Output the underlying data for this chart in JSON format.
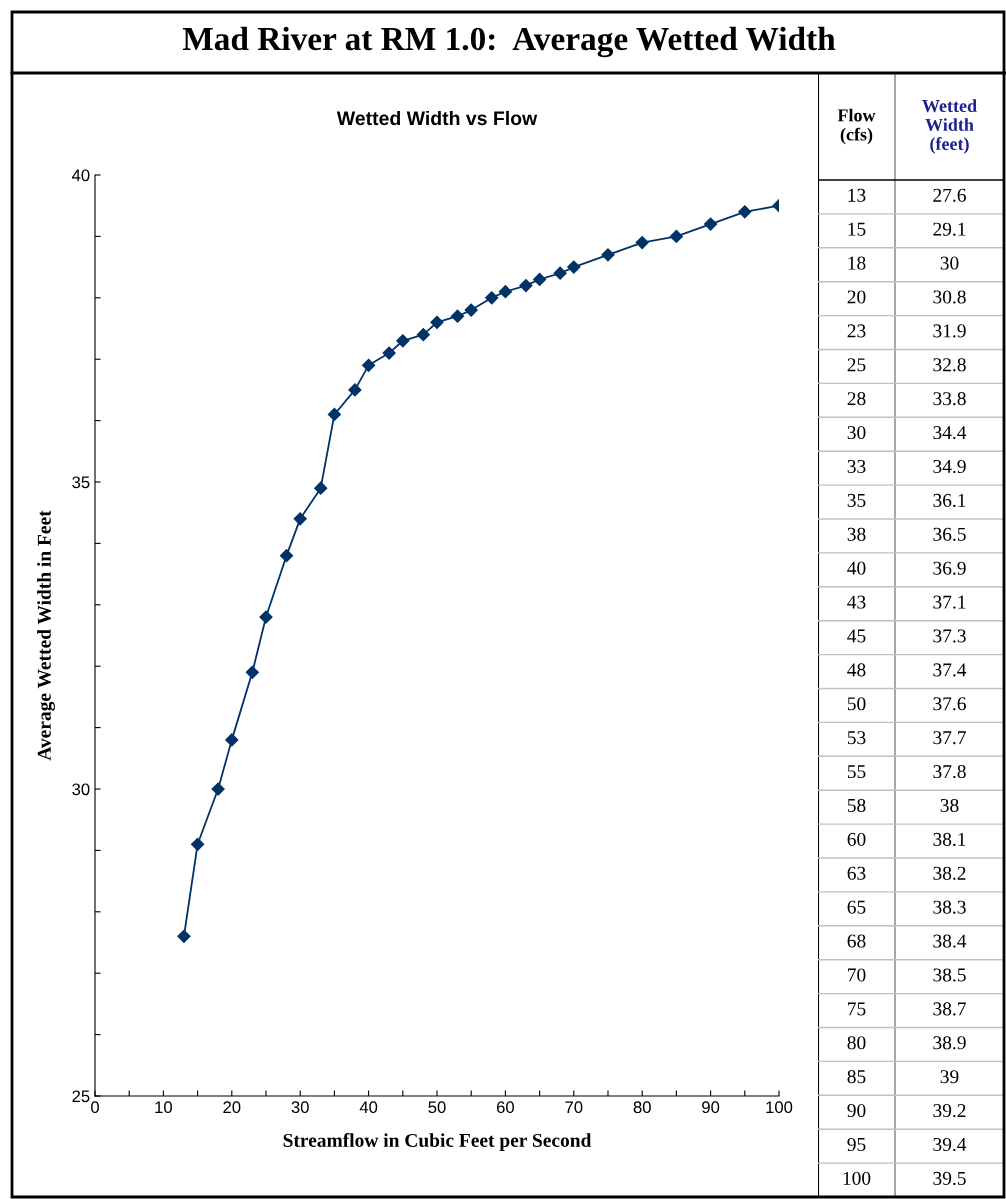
{
  "chart_data": [
    {
      "type": "line",
      "title": "Mad River at RM 1.0:  Average Wetted Width",
      "subtitle": "Wetted Width vs Flow",
      "xlabel": "Streamflow in Cubic Feet per Second",
      "ylabel": "Average Wetted Width in Feet",
      "x": [
        13,
        15,
        18,
        20,
        23,
        25,
        28,
        30,
        33,
        35,
        38,
        40,
        43,
        45,
        48,
        50,
        53,
        55,
        58,
        60,
        63,
        65,
        68,
        70,
        75,
        80,
        85,
        90,
        95,
        100
      ],
      "series": [
        {
          "color": "#003366",
          "values": [
            27.6,
            29.1,
            30,
            30.8,
            31.9,
            32.8,
            33.8,
            34.4,
            34.9,
            36.1,
            36.5,
            36.9,
            37.1,
            37.3,
            37.4,
            37.6,
            37.7,
            37.8,
            38,
            38.1,
            38.2,
            38.3,
            38.4,
            38.5,
            38.7,
            38.9,
            39,
            39.2,
            39.4,
            39.5
          ]
        }
      ],
      "xlim": [
        0,
        100
      ],
      "xticks": [
        0,
        {
          "value": 5,
          "label": null
        },
        10,
        {
          "value": 15,
          "label": null
        },
        20,
        {
          "value": 25,
          "label": null
        },
        30,
        {
          "value": 35,
          "label": null
        },
        40,
        {
          "value": 45,
          "label": null
        },
        50,
        {
          "value": 55,
          "label": null
        },
        60,
        {
          "value": 65,
          "label": null
        },
        70,
        {
          "value": 75,
          "label": null
        },
        80,
        {
          "value": 85,
          "label": null
        },
        90,
        {
          "value": 95,
          "label": null
        },
        100
      ],
      "ylim": [
        25,
        40
      ],
      "yticks": [
        25,
        {
          "value": 26,
          "label": null
        },
        {
          "value": 27,
          "label": null
        },
        {
          "value": 28,
          "label": null
        },
        {
          "value": 29,
          "label": null
        },
        30,
        {
          "value": 31,
          "label": null
        },
        {
          "value": 32,
          "label": null
        },
        {
          "value": 33,
          "label": null
        },
        {
          "value": 34,
          "label": null
        },
        35,
        {
          "value": 36,
          "label": null
        },
        {
          "value": 37,
          "label": null
        },
        {
          "value": 38,
          "label": null
        },
        {
          "value": 39,
          "label": null
        },
        40
      ],
      "marker": "diamond",
      "line_style": "solid",
      "grid": false,
      "legend": false
    },
    {
      "type": "other",
      "annotations": [
        "Flow\n(cfs)",
        "Wetted\nWidth\n(feet)",
        "13",
        "27.6",
        "15",
        "29.1",
        "18",
        "30",
        "20",
        "30.8",
        "23",
        "31.9",
        "25",
        "32.8",
        "28",
        "33.8",
        "30",
        "34.4",
        "33",
        "34.9",
        "35",
        "36.1",
        "38",
        "36.5",
        "40",
        "36.9",
        "43",
        "37.1",
        "45",
        "37.3",
        "48",
        "37.4",
        "50",
        "37.6",
        "53",
        "37.7",
        "55",
        "37.8",
        "58",
        "38",
        "60",
        "38.1",
        "63",
        "38.2",
        "65",
        "38.3",
        "68",
        "38.4",
        "70",
        "38.5",
        "75",
        "38.7",
        "80",
        "38.9",
        "85",
        "39",
        "90",
        "39.2",
        "95",
        "39.4",
        "100",
        "39.5"
      ]
    }
  ]
}
